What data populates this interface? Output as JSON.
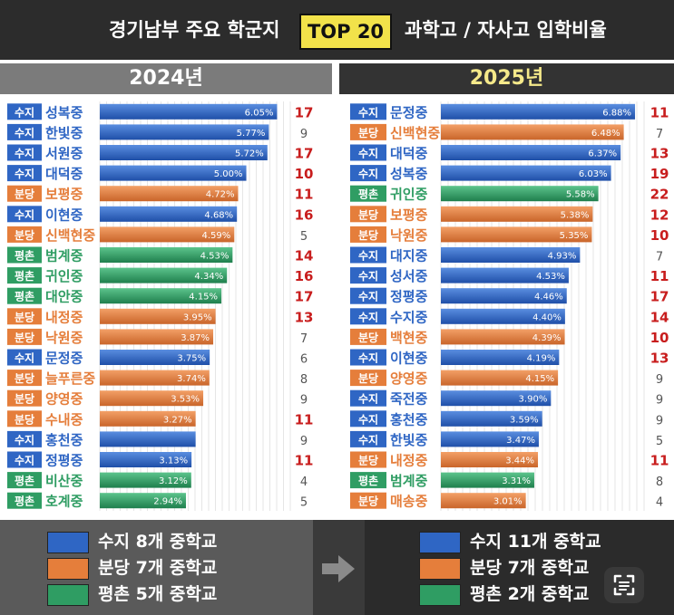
{
  "header": {
    "left": "경기남부 주요 학군지",
    "badge": "TOP 20",
    "right": "과학고 / 자사고 입학비율"
  },
  "colors": {
    "수지": "#2f66c4",
    "분당": "#e57e3b",
    "평촌": "#2f9d63",
    "count_red": "#c81d1d",
    "count_gray": "#555555"
  },
  "chart_data": [
    {
      "type": "bar",
      "title": "2024년",
      "xlim": [
        0,
        6.5
      ],
      "grid": true,
      "rows": [
        {
          "region": "수지",
          "school": "성복중",
          "value": 6.05,
          "label": "6.05%",
          "count": 17
        },
        {
          "region": "수지",
          "school": "한빛중",
          "value": 5.77,
          "label": "5.77%",
          "count": 9
        },
        {
          "region": "수지",
          "school": "서원중",
          "value": 5.72,
          "label": "5.72%",
          "count": 17
        },
        {
          "region": "수지",
          "school": "대덕중",
          "value": 5.0,
          "label": "5.00%",
          "count": 10
        },
        {
          "region": "분당",
          "school": "보평중",
          "value": 4.72,
          "label": "4.72%",
          "count": 11
        },
        {
          "region": "수지",
          "school": "이현중",
          "value": 4.68,
          "label": "4.68%",
          "count": 16
        },
        {
          "region": "분당",
          "school": "신백현중",
          "value": 4.59,
          "label": "4.59%",
          "count": 5
        },
        {
          "region": "평촌",
          "school": "범계중",
          "value": 4.53,
          "label": "4.53%",
          "count": 14
        },
        {
          "region": "평촌",
          "school": "귀인중",
          "value": 4.34,
          "label": "4.34%",
          "count": 16
        },
        {
          "region": "평촌",
          "school": "대안중",
          "value": 4.15,
          "label": "4.15%",
          "count": 17
        },
        {
          "region": "분당",
          "school": "내정중",
          "value": 3.95,
          "label": "3.95%",
          "count": 13
        },
        {
          "region": "분당",
          "school": "낙원중",
          "value": 3.87,
          "label": "3.87%",
          "count": 7
        },
        {
          "region": "수지",
          "school": "문정중",
          "value": 3.75,
          "label": "3.75%",
          "count": 6
        },
        {
          "region": "분당",
          "school": "늘푸른중",
          "value": 3.74,
          "label": "3.74%",
          "count": 8
        },
        {
          "region": "분당",
          "school": "양영중",
          "value": 3.53,
          "label": "3.53%",
          "count": 9
        },
        {
          "region": "분당",
          "school": "수내중",
          "value": 3.27,
          "label": "3.27%",
          "count": 11
        },
        {
          "region": "수지",
          "school": "홍천중",
          "value": 3.27,
          "label": "",
          "count": 9
        },
        {
          "region": "수지",
          "school": "정평중",
          "value": 3.13,
          "label": "3.13%",
          "count": 11
        },
        {
          "region": "평촌",
          "school": "비산중",
          "value": 3.12,
          "label": "3.12%",
          "count": 4
        },
        {
          "region": "평촌",
          "school": "호계중",
          "value": 2.94,
          "label": "2.94%",
          "count": 5
        }
      ]
    },
    {
      "type": "bar",
      "title": "2025년",
      "xlim": [
        0,
        7.2
      ],
      "grid": true,
      "rows": [
        {
          "region": "수지",
          "school": "문정중",
          "value": 6.88,
          "label": "6.88%",
          "count": 11
        },
        {
          "region": "분당",
          "school": "신백현중",
          "value": 6.48,
          "label": "6.48%",
          "count": 7
        },
        {
          "region": "수지",
          "school": "대덕중",
          "value": 6.37,
          "label": "6.37%",
          "count": 13
        },
        {
          "region": "수지",
          "school": "성복중",
          "value": 6.03,
          "label": "6.03%",
          "count": 19
        },
        {
          "region": "평촌",
          "school": "귀인중",
          "value": 5.58,
          "label": "5.58%",
          "count": 22
        },
        {
          "region": "분당",
          "school": "보평중",
          "value": 5.38,
          "label": "5.38%",
          "count": 12
        },
        {
          "region": "분당",
          "school": "낙원중",
          "value": 5.35,
          "label": "5.35%",
          "count": 10
        },
        {
          "region": "수지",
          "school": "대지중",
          "value": 4.93,
          "label": "4.93%",
          "count": 7
        },
        {
          "region": "수지",
          "school": "성서중",
          "value": 4.53,
          "label": "4.53%",
          "count": 11
        },
        {
          "region": "수지",
          "school": "정평중",
          "value": 4.46,
          "label": "4.46%",
          "count": 17
        },
        {
          "region": "수지",
          "school": "수지중",
          "value": 4.4,
          "label": "4.40%",
          "count": 14
        },
        {
          "region": "분당",
          "school": "백현중",
          "value": 4.39,
          "label": "4.39%",
          "count": 10
        },
        {
          "region": "수지",
          "school": "이현중",
          "value": 4.19,
          "label": "4.19%",
          "count": 13
        },
        {
          "region": "분당",
          "school": "양영중",
          "value": 4.15,
          "label": "4.15%",
          "count": 9
        },
        {
          "region": "수지",
          "school": "죽전중",
          "value": 3.9,
          "label": "3.90%",
          "count": 9
        },
        {
          "region": "수지",
          "school": "홍천중",
          "value": 3.59,
          "label": "3.59%",
          "count": 9
        },
        {
          "region": "수지",
          "school": "한빛중",
          "value": 3.47,
          "label": "3.47%",
          "count": 5
        },
        {
          "region": "분당",
          "school": "내정중",
          "value": 3.44,
          "label": "3.44%",
          "count": 11
        },
        {
          "region": "평촌",
          "school": "범계중",
          "value": 3.31,
          "label": "3.31%",
          "count": 8
        },
        {
          "region": "분당",
          "school": "매송중",
          "value": 3.01,
          "label": "3.01%",
          "count": 4
        }
      ]
    }
  ],
  "legend": {
    "left": [
      {
        "region": "수지",
        "text": "수지 8개 중학교"
      },
      {
        "region": "분당",
        "text": "분당 7개 중학교"
      },
      {
        "region": "평촌",
        "text": "평촌 5개 중학교"
      }
    ],
    "right": [
      {
        "region": "수지",
        "text": "수지 11개 중학교"
      },
      {
        "region": "분당",
        "text": "분당 7개 중학교"
      },
      {
        "region": "평촌",
        "text": "평촌 2개 중학교"
      }
    ]
  }
}
